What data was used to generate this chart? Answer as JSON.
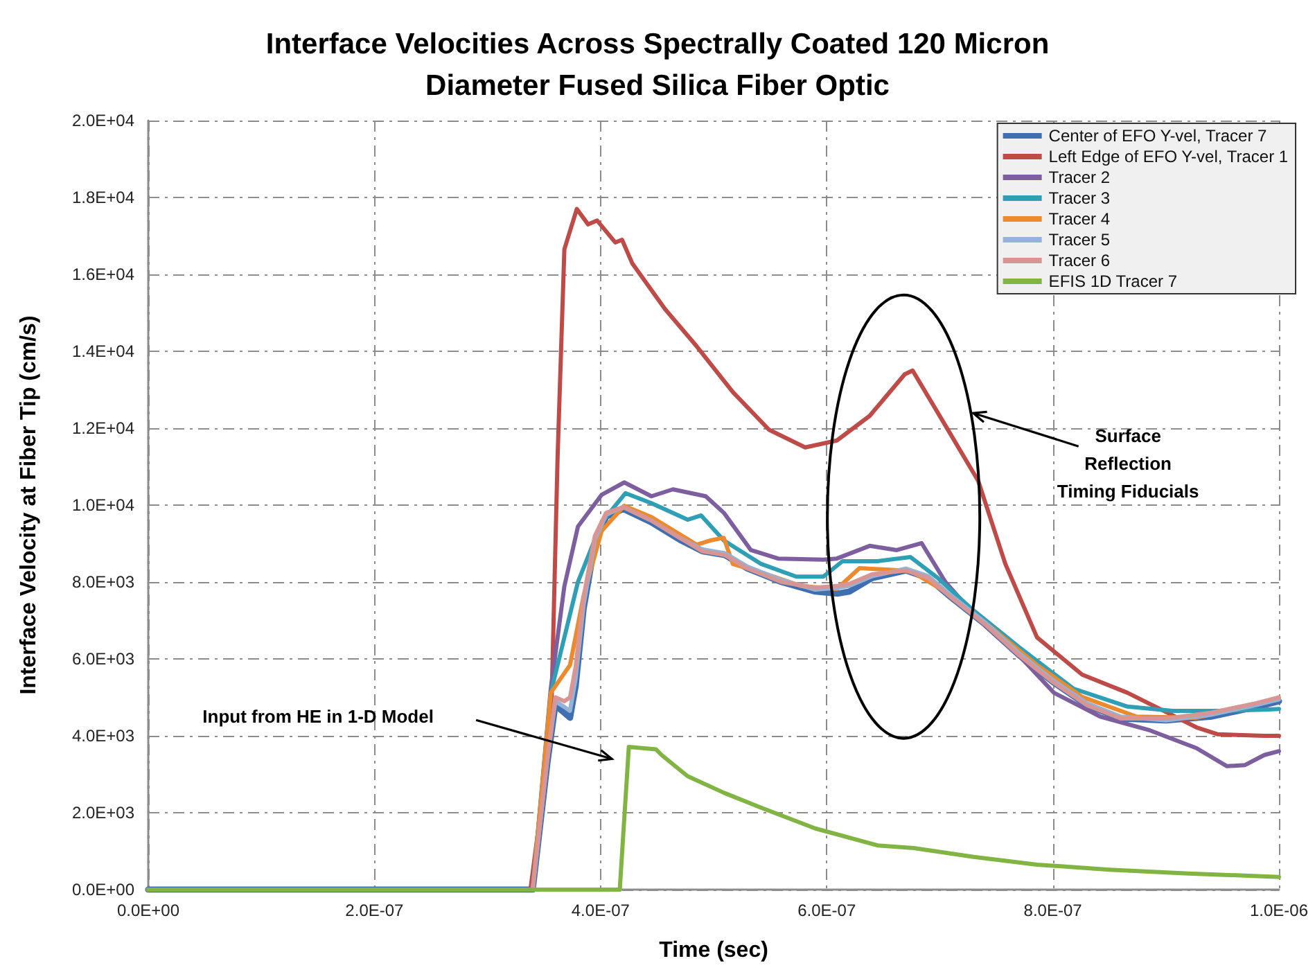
{
  "chart_data": {
    "type": "line",
    "title": "Interface Velocities Across Spectrally Coated 120 Micron\nDiameter Fused Silica Fiber Optic",
    "xlabel": "Time (sec)",
    "ylabel": "Interface Velocity at Fiber Tip (cm/s)",
    "xlim": [
      0,
      1e-06
    ],
    "xticks": [
      {
        "value": 0,
        "label": "0.0E+00"
      },
      {
        "value": 2e-07,
        "label": "2.0E-07"
      },
      {
        "value": 4e-07,
        "label": "4.0E-07"
      },
      {
        "value": 6e-07,
        "label": "6.0E-07"
      },
      {
        "value": 8e-07,
        "label": "8.0E-07"
      },
      {
        "value": 1e-06,
        "label": "1.0E-06"
      }
    ],
    "ylim": [
      0,
      20000
    ],
    "yticks": [
      {
        "value": 0,
        "label": "0.0E+00"
      },
      {
        "value": 2000,
        "label": "2.0E+03"
      },
      {
        "value": 4000,
        "label": "4.0E+03"
      },
      {
        "value": 6000,
        "label": "6.0E+03"
      },
      {
        "value": 8000,
        "label": "8.0E+03"
      },
      {
        "value": 10000,
        "label": "1.0E+04"
      },
      {
        "value": 12000,
        "label": "1.2E+04"
      },
      {
        "value": 14000,
        "label": "1.4E+04"
      },
      {
        "value": 16000,
        "label": "1.6E+04"
      },
      {
        "value": 18000,
        "label": "1.8E+04"
      },
      {
        "value": 20000,
        "label": "2.0E+04"
      }
    ],
    "grid": true,
    "legend": "top right",
    "marker": "none",
    "line_style": "solid",
    "series": [
      {
        "name": "Center of EFO Y-vel, Tracer 7",
        "color": "#3f6fb0",
        "x": [
          0,
          3.4e-07,
          3.53e-07,
          3.6e-07,
          3.68e-07,
          3.73e-07,
          3.78e-07,
          3.85e-07,
          3.95e-07,
          4.05e-07,
          4.2e-07,
          4.45e-07,
          4.7e-07,
          4.9e-07,
          5.1e-07,
          5.3e-07,
          5.6e-07,
          5.9e-07,
          6.1e-07,
          6.2e-07,
          6.4e-07,
          6.7e-07,
          6.9e-07,
          7.1e-07,
          7.4e-07,
          7.7e-07,
          8e-07,
          8.3e-07,
          8.6e-07,
          9e-07,
          9.4e-07,
          9.8e-07,
          1e-06
        ],
        "values": [
          0,
          0,
          3300,
          4800,
          4600,
          4470,
          5300,
          7300,
          9000,
          9700,
          9900,
          9550,
          9100,
          8800,
          8700,
          8350,
          8000,
          7750,
          7700,
          7750,
          8100,
          8300,
          8100,
          7600,
          6900,
          6100,
          5400,
          4800,
          4450,
          4400,
          4500,
          4750,
          4900
        ]
      },
      {
        "name": "Left Edge of EFO Y-vel, Tracer 1",
        "color": "#be4b48",
        "x": [
          0,
          3.38e-07,
          3.56e-07,
          3.62e-07,
          3.68e-07,
          3.79e-07,
          3.89e-07,
          3.97e-07,
          4.13e-07,
          4.19e-07,
          4.28e-07,
          4.57e-07,
          4.85e-07,
          5.17e-07,
          5.49e-07,
          5.81e-07,
          6.09e-07,
          6.38e-07,
          6.69e-07,
          6.76e-07,
          7.05e-07,
          7.34e-07,
          7.58e-07,
          7.86e-07,
          8.26e-07,
          8.66e-07,
          8.98e-07,
          9.27e-07,
          9.46e-07,
          9.87e-07,
          1e-06
        ],
        "values": [
          0,
          0,
          4040,
          11240,
          16650,
          17700,
          17300,
          17400,
          16830,
          16900,
          16290,
          15100,
          14130,
          12940,
          11960,
          11500,
          11680,
          12320,
          13400,
          13500,
          12070,
          10630,
          8470,
          6560,
          5590,
          5120,
          4650,
          4220,
          4040,
          4000,
          4000
        ]
      },
      {
        "name": "Tracer 2",
        "color": "#7d5fa0",
        "x": [
          0,
          3.4e-07,
          3.56e-07,
          3.68e-07,
          3.8e-07,
          4.01e-07,
          4.21e-07,
          4.45e-07,
          4.64e-07,
          4.93e-07,
          5.09e-07,
          5.33e-07,
          5.57e-07,
          5.97e-07,
          6.09e-07,
          6.38e-07,
          6.62e-07,
          6.84e-07,
          7.05e-07,
          7.34e-07,
          7.7e-07,
          8.01e-07,
          8.42e-07,
          8.86e-07,
          9.27e-07,
          9.54e-07,
          9.7e-07,
          9.87e-07,
          1e-06
        ],
        "values": [
          0,
          0,
          5230,
          7890,
          9440,
          10270,
          10590,
          10230,
          10410,
          10230,
          9800,
          8830,
          8610,
          8580,
          8610,
          8940,
          8830,
          9010,
          8000,
          7030,
          6090,
          5120,
          4500,
          4140,
          3680,
          3210,
          3240,
          3500,
          3600
        ]
      },
      {
        "name": "Tracer 3",
        "color": "#2f9fb6",
        "x": [
          0,
          3.4e-07,
          3.56e-07,
          3.8e-07,
          4.01e-07,
          4.22e-07,
          4.45e-07,
          4.77e-07,
          4.89e-07,
          5.09e-07,
          5.42e-07,
          5.73e-07,
          5.97e-07,
          6.14e-07,
          6.45e-07,
          6.74e-07,
          6.98e-07,
          7.29e-07,
          7.7e-07,
          8.18e-07,
          8.66e-07,
          9.06e-07,
          9.46e-07,
          9.87e-07,
          1e-06
        ],
        "values": [
          0,
          0,
          5120,
          8000,
          9550,
          10310,
          10050,
          9620,
          9730,
          9080,
          8470,
          8140,
          8140,
          8540,
          8540,
          8650,
          8110,
          7280,
          6310,
          5230,
          4760,
          4650,
          4650,
          4680,
          4700
        ]
      },
      {
        "name": "Tracer 4",
        "color": "#ee8a2e",
        "x": [
          0,
          3.4e-07,
          3.56e-07,
          3.73e-07,
          3.85e-07,
          4.01e-07,
          4.21e-07,
          4.45e-07,
          4.85e-07,
          4.97e-07,
          5.09e-07,
          5.17e-07,
          5.42e-07,
          5.78e-07,
          6.09e-07,
          6.29e-07,
          6.74e-07,
          7.05e-07,
          7.46e-07,
          7.86e-07,
          8.26e-07,
          8.74e-07,
          9.27e-07,
          9.87e-07,
          1e-06
        ],
        "values": [
          0,
          0,
          5120,
          5840,
          7640,
          9330,
          9980,
          9690,
          8970,
          9080,
          9150,
          8470,
          8250,
          7890,
          7820,
          8360,
          8290,
          7750,
          6810,
          5840,
          5010,
          4500,
          4470,
          4860,
          4950
        ]
      },
      {
        "name": "Tracer 5",
        "color": "#95b3d7",
        "x": [
          0,
          3.4e-07,
          3.53e-07,
          3.6e-07,
          3.68e-07,
          3.73e-07,
          3.78e-07,
          3.85e-07,
          3.95e-07,
          4.05e-07,
          4.2e-07,
          4.45e-07,
          4.7e-07,
          4.9e-07,
          5.1e-07,
          5.3e-07,
          5.6e-07,
          5.9e-07,
          6.1e-07,
          6.2e-07,
          6.4e-07,
          6.7e-07,
          6.9e-07,
          7.1e-07,
          7.4e-07,
          7.7e-07,
          8e-07,
          8.3e-07,
          8.6e-07,
          9e-07,
          9.4e-07,
          9.8e-07,
          1e-06
        ],
        "values": [
          0,
          0,
          3400,
          4900,
          4750,
          4650,
          5500,
          7400,
          9100,
          9750,
          9950,
          9600,
          9150,
          8850,
          8750,
          8400,
          8050,
          7800,
          7850,
          7900,
          8150,
          8350,
          8150,
          7650,
          6950,
          6150,
          5450,
          4850,
          4500,
          4400,
          4550,
          4800,
          4950
        ]
      },
      {
        "name": "Tracer 6",
        "color": "#d99594",
        "x": [
          0,
          3.4e-07,
          3.53e-07,
          3.6e-07,
          3.68e-07,
          3.73e-07,
          3.78e-07,
          3.85e-07,
          3.95e-07,
          4.05e-07,
          4.2e-07,
          4.45e-07,
          4.7e-07,
          4.9e-07,
          5.1e-07,
          5.3e-07,
          5.6e-07,
          5.9e-07,
          6.1e-07,
          6.2e-07,
          6.4e-07,
          6.7e-07,
          6.9e-07,
          7.1e-07,
          7.4e-07,
          7.7e-07,
          8e-07,
          8.3e-07,
          8.6e-07,
          9e-07,
          9.4e-07,
          9.8e-07,
          1e-06
        ],
        "values": [
          0,
          0,
          3420,
          5000,
          4900,
          5000,
          5800,
          7600,
          9200,
          9800,
          9950,
          9600,
          9150,
          8800,
          8700,
          8350,
          8000,
          7850,
          7900,
          7950,
          8200,
          8300,
          8100,
          7600,
          6900,
          6100,
          5400,
          4800,
          4450,
          4450,
          4600,
          4850,
          5000
        ]
      },
      {
        "name": "EFIS 1D Tracer 7",
        "color": "#82b443",
        "x": [
          0,
          4.17e-07,
          4.25e-07,
          4.49e-07,
          4.54e-07,
          4.77e-07,
          5.09e-07,
          5.42e-07,
          5.9e-07,
          6.45e-07,
          6.77e-07,
          7.3e-07,
          7.86e-07,
          8.5e-07,
          9.2e-07,
          1e-06
        ],
        "values": [
          0,
          0,
          3710,
          3650,
          3500,
          2950,
          2520,
          2130,
          1590,
          1150,
          1080,
          850,
          650,
          520,
          420,
          330
        ]
      }
    ],
    "annotations": [
      "Input from HE in 1-D Model",
      "Surface\nReflection\nTiming Fiducials"
    ]
  }
}
